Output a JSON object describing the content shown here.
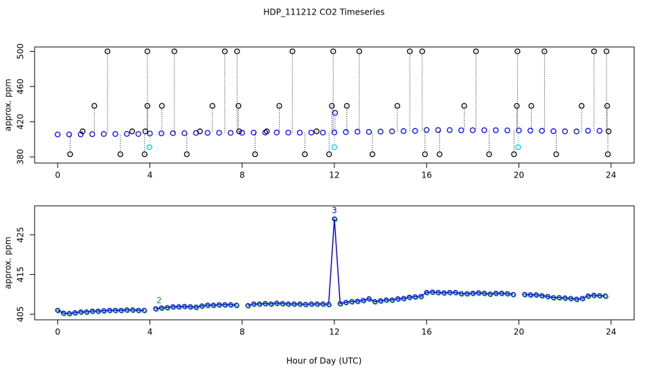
{
  "chart_data": [
    {
      "type": "scatter",
      "title": "HDP_111212  CO2 Timeseries",
      "ylabel": "approx. ppm",
      "xlim": [
        -1,
        25
      ],
      "xticks": [
        0,
        4,
        8,
        12,
        16,
        20,
        24
      ],
      "ylim": [
        373,
        505
      ],
      "yticks": [
        380,
        420,
        460,
        500
      ],
      "series": [
        {
          "color": "#0000ff",
          "x": [
            0,
            0.5,
            1,
            1.5,
            2,
            2.5,
            3,
            3.5,
            4,
            4.5,
            5,
            5.5,
            6,
            6.5,
            7,
            7.5,
            8,
            8.5,
            9,
            9.5,
            10,
            10.5,
            11,
            11.5,
            12,
            12.5,
            13,
            13.5,
            14,
            14.5,
            15,
            15.5,
            16,
            16.5,
            17,
            17.5,
            18,
            18.5,
            19,
            19.5,
            20,
            20.5,
            21,
            21.5,
            22,
            22.5,
            23,
            23.5
          ],
          "values": [
            405.5,
            405.5,
            405.6,
            405.8,
            406,
            406,
            406.1,
            406,
            406.5,
            406.7,
            406.9,
            406.9,
            407.2,
            407.3,
            407.4,
            407.3,
            407.4,
            407.6,
            407.7,
            407.7,
            407.6,
            407.6,
            407.6,
            407.6,
            407.8,
            408.2,
            408.6,
            408.4,
            408.7,
            409,
            409.3,
            409.5,
            410.6,
            410.5,
            410.5,
            410.2,
            410.3,
            410.3,
            410.3,
            410.1,
            410,
            409.9,
            409.6,
            409.2,
            409,
            408.9,
            409.7,
            409.6
          ]
        },
        {
          "color": "#000000",
          "x": [
            0.54,
            2.72,
            3.77,
            5.6,
            8.56,
            10.72,
            11.77,
            13.65,
            15.93,
            16.56,
            18.71,
            19.79,
            21.62,
            23.86,
            2.16,
            3.89,
            5.06,
            7.25,
            7.78,
            10.18,
            11.95,
            13.08,
            15.27,
            15.81,
            18.14,
            19.94,
            21.11,
            23.26,
            23.8,
            1.59,
            3.89,
            4.52,
            6.71,
            7.84,
            9.61,
            11.89,
            12.54,
            14.73,
            17.63,
            19.91,
            20.54,
            22.72,
            23.83,
            1.08,
            3.23,
            6.17,
            9.07,
            11.23,
            3.8,
            7.87,
            23.89
          ],
          "values": [
            383,
            383,
            383,
            383,
            383,
            383,
            383,
            383,
            383,
            383,
            383,
            383,
            383,
            383,
            500,
            500,
            500,
            500,
            500,
            500,
            500,
            500,
            500,
            500,
            500,
            500,
            500,
            500,
            500,
            438,
            438,
            438,
            438,
            438,
            438,
            438,
            438,
            438,
            438,
            438,
            438,
            438,
            438,
            409,
            409,
            409,
            409,
            409,
            409,
            409,
            409
          ]
        },
        {
          "color": "#00cccc",
          "x": [
            3.98,
            12,
            19.97
          ],
          "values": [
            391,
            391,
            391
          ]
        },
        {
          "color": "#0000ff",
          "x": [
            12.03
          ],
          "values": [
            430
          ]
        }
      ]
    },
    {
      "type": "line",
      "ylabel": "approx. ppm",
      "x_label": "Hour of Day (UTC)",
      "xlim": [
        -1,
        25
      ],
      "xticks": [
        0,
        4,
        8,
        12,
        16,
        20,
        24
      ],
      "ylim": [
        403.6,
        432.3
      ],
      "yticks": [
        405,
        415,
        425
      ],
      "series": [
        {
          "color": "#0000ff",
          "marker_edge": "#00aa00",
          "x": [
            0,
            0.25,
            0.5,
            0.75,
            1,
            1.25,
            1.5,
            1.75,
            2,
            2.25,
            2.5,
            2.75,
            3,
            3.25,
            3.5,
            3.75,
            4,
            4.25,
            4.5,
            4.75,
            5,
            5.25,
            5.5,
            5.75,
            6,
            6.25,
            6.5,
            6.75,
            7,
            7.25,
            7.5,
            7.75,
            8,
            8.25,
            8.5,
            8.75,
            9,
            9.25,
            9.5,
            9.75,
            10,
            10.25,
            10.5,
            10.75,
            11,
            11.25,
            11.5,
            11.75,
            12,
            12.25,
            12.5,
            12.75,
            13,
            13.25,
            13.5,
            13.75,
            14,
            14.25,
            14.5,
            14.75,
            15,
            15.25,
            15.5,
            15.75,
            16,
            16.25,
            16.5,
            16.75,
            17,
            17.25,
            17.5,
            17.75,
            18,
            18.25,
            18.5,
            18.75,
            19,
            19.25,
            19.5,
            19.75,
            20,
            20.25,
            20.5,
            20.75,
            21,
            21.25,
            21.5,
            21.75,
            22,
            22.25,
            22.5,
            22.75,
            23,
            23.25,
            23.5,
            23.75
          ],
          "values": [
            406,
            405.3,
            405.2,
            405.4,
            405.6,
            405.6,
            405.8,
            405.8,
            405.9,
            406,
            406,
            406,
            406.1,
            406.1,
            406,
            406,
            null,
            406.4,
            406.6,
            406.7,
            406.9,
            406.9,
            407,
            406.9,
            406.8,
            407.1,
            407.3,
            407.3,
            407.4,
            407.4,
            407.4,
            407.3,
            null,
            407.2,
            407.6,
            407.6,
            407.7,
            407.6,
            407.8,
            407.7,
            407.6,
            407.6,
            407.6,
            407.5,
            407.6,
            407.6,
            407.6,
            407.5,
            429,
            407.7,
            408,
            408.2,
            408.3,
            408.5,
            408.9,
            408.2,
            408.4,
            408.6,
            408.6,
            408.9,
            409,
            409.3,
            409.4,
            409.5,
            410.5,
            410.6,
            410.5,
            410.4,
            410.5,
            410.5,
            410.2,
            410.2,
            410.3,
            410.4,
            410.3,
            410.1,
            410.3,
            410.3,
            410.2,
            410,
            null,
            410,
            409.9,
            409.9,
            409.7,
            409.5,
            409.2,
            409.2,
            409.1,
            409,
            408.8,
            409,
            409.6,
            409.8,
            409.7,
            409.6
          ]
        }
      ],
      "annotations": [
        {
          "text": "3",
          "x": 12,
          "y": 430,
          "color": "#0000ff"
        },
        {
          "text": "2",
          "x": 4.4,
          "y": 407.3,
          "color": "#00aa00"
        }
      ]
    }
  ]
}
